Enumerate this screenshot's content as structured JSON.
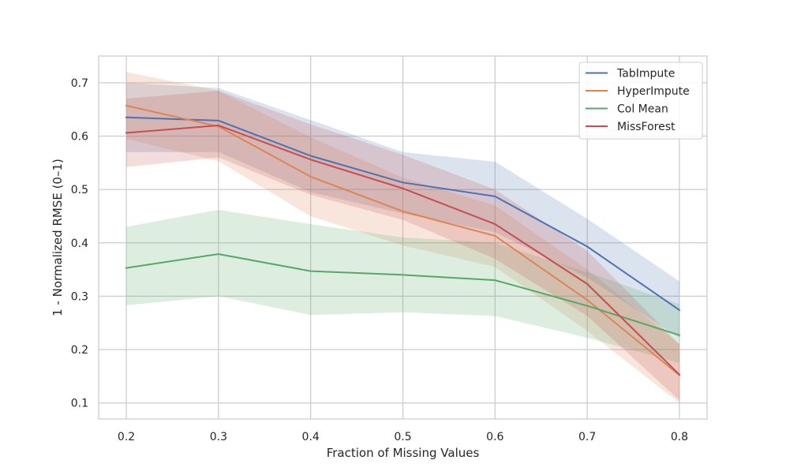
{
  "chart_data": {
    "type": "line",
    "title": "",
    "xlabel": "Fraction of Missing Values",
    "ylabel": "1 - Normalized RMSE (0–1)",
    "x": [
      0.2,
      0.3,
      0.4,
      0.5,
      0.6,
      0.7,
      0.8
    ],
    "x_tick_labels": [
      "0.2",
      "0.3",
      "0.4",
      "0.5",
      "0.6",
      "0.7",
      "0.8"
    ],
    "y_ticks": [
      0.1,
      0.2,
      0.3,
      0.4,
      0.5,
      0.6,
      0.7
    ],
    "y_tick_labels": [
      "0.1",
      "0.2",
      "0.3",
      "0.4",
      "0.5",
      "0.6",
      "0.7"
    ],
    "xlim": [
      0.17,
      0.83
    ],
    "ylim": [
      0.07,
      0.75
    ],
    "grid": true,
    "legend_position": "top-right",
    "series": [
      {
        "name": "TabImpute",
        "color": "#4c72b0",
        "values": [
          0.635,
          0.629,
          0.563,
          0.513,
          0.487,
          0.393,
          0.274
        ],
        "lower": [
          0.57,
          0.57,
          0.495,
          0.455,
          0.42,
          0.335,
          0.222
        ],
        "upper": [
          0.7,
          0.69,
          0.63,
          0.57,
          0.552,
          0.445,
          0.328
        ]
      },
      {
        "name": "HyperImpute",
        "color": "#dd8452",
        "values": [
          0.657,
          0.618,
          0.524,
          0.459,
          0.413,
          0.293,
          0.152
        ],
        "lower": [
          0.595,
          0.553,
          0.45,
          0.395,
          0.355,
          0.235,
          0.1
        ],
        "upper": [
          0.72,
          0.685,
          0.598,
          0.522,
          0.47,
          0.35,
          0.21
        ]
      },
      {
        "name": "Col Mean",
        "color": "#55a868",
        "values": [
          0.353,
          0.379,
          0.347,
          0.34,
          0.33,
          0.282,
          0.227
        ],
        "lower": [
          0.283,
          0.3,
          0.265,
          0.27,
          0.263,
          0.222,
          0.175
        ],
        "upper": [
          0.43,
          0.462,
          0.435,
          0.41,
          0.4,
          0.345,
          0.285
        ]
      },
      {
        "name": "MissForest",
        "color": "#c44e52",
        "values": [
          0.606,
          0.62,
          0.556,
          0.502,
          0.435,
          0.323,
          0.153
        ],
        "lower": [
          0.542,
          0.56,
          0.49,
          0.443,
          0.37,
          0.263,
          0.105
        ],
        "upper": [
          0.67,
          0.685,
          0.622,
          0.565,
          0.5,
          0.385,
          0.21
        ]
      }
    ]
  }
}
